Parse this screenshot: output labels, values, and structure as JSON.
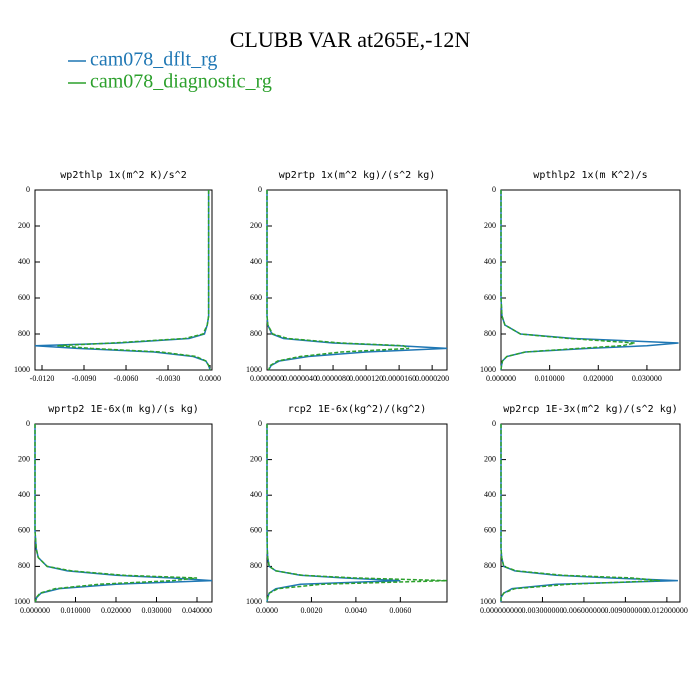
{
  "title": "CLUBB VAR at265E,-12N",
  "chart_data": [
    {
      "type": "line",
      "title": "wp2thlp  1x(m^2 K)/s^2",
      "y": [
        0,
        100,
        200,
        300,
        400,
        500,
        600,
        700,
        750,
        800,
        825,
        850,
        865,
        880,
        900,
        925,
        950,
        975,
        1000
      ],
      "series": [
        {
          "name": "cam078_dflt_rg",
          "color": "#1f77b4",
          "values": [
            -0.0001,
            -0.0001,
            -0.0001,
            -0.0001,
            -0.0001,
            -0.0001,
            -0.0001,
            -0.0001,
            -0.0002,
            -0.0004,
            -0.0015,
            -0.0065,
            -0.0125,
            -0.0095,
            -0.004,
            -0.0012,
            -0.0003,
            -0.0001,
            0
          ]
        },
        {
          "name": "cam078_diagnostic_rg",
          "color": "#2ca02c",
          "dashed": true,
          "values": [
            -0.0001,
            -0.0001,
            -0.0001,
            -0.0001,
            -0.0001,
            -0.0001,
            -0.0001,
            -0.0001,
            -0.0002,
            -0.0005,
            -0.0018,
            -0.007,
            -0.0109,
            -0.0085,
            -0.0035,
            -0.001,
            -0.0003,
            -0.0001,
            0
          ]
        }
      ],
      "xlim": [
        -0.0125,
        0.00014
      ],
      "xticks": [
        {
          "value": -0.012,
          "label": "-0.0120"
        },
        {
          "value": -0.009,
          "label": "-0.0090"
        },
        {
          "value": -0.006,
          "label": "-0.0060"
        },
        {
          "value": -0.003,
          "label": "-0.0030"
        },
        {
          "value": 0,
          "label": "0.0000"
        }
      ],
      "ylim": [
        0,
        1000
      ],
      "yticks": [
        0,
        200,
        400,
        600,
        800,
        1000
      ],
      "y_reversed": true
    },
    {
      "type": "line",
      "title": "wp2rtp  1x(m^2 kg)/(s^2 kg)",
      "y": [
        0,
        100,
        200,
        300,
        400,
        500,
        600,
        700,
        750,
        800,
        825,
        850,
        865,
        880,
        900,
        925,
        950,
        975,
        1000
      ],
      "series": [
        {
          "name": "cam078_dflt_rg",
          "color": "#1f77b4",
          "values": [
            0,
            0,
            0,
            0,
            0,
            0,
            0,
            0,
            1e-07,
            6e-07,
            2e-06,
            8e-06,
            1.6e-05,
            2.18e-05,
            1.2e-05,
            5e-06,
            1.5e-06,
            5e-07,
            2e-07
          ]
        },
        {
          "name": "cam078_diagnostic_rg",
          "color": "#2ca02c",
          "dashed": true,
          "values": [
            0,
            0,
            0,
            0,
            0,
            0,
            0,
            0,
            1e-07,
            7e-07,
            2.5e-06,
            9e-06,
            1.65e-05,
            1.72e-05,
            9e-06,
            4e-06,
            1.3e-06,
            4e-07,
            2e-07
          ]
        }
      ],
      "xlim": [
        0,
        2.18e-05
      ],
      "xticks": [
        {
          "value": 0,
          "label": "0.0000000"
        },
        {
          "value": 4e-06,
          "label": "0.0000040"
        },
        {
          "value": 8e-06,
          "label": "0.0000080"
        },
        {
          "value": 1.2e-05,
          "label": "0.0000120"
        },
        {
          "value": 1.6e-05,
          "label": "0.0000160"
        },
        {
          "value": 2e-05,
          "label": "0.0000200"
        }
      ],
      "ylim": [
        0,
        1000
      ],
      "yticks": [
        0,
        200,
        400,
        600,
        800,
        1000
      ],
      "y_reversed": true
    },
    {
      "type": "line",
      "title": "wpthlp2  1x(m K^2)/s",
      "y": [
        0,
        100,
        200,
        300,
        400,
        500,
        600,
        700,
        750,
        800,
        825,
        850,
        865,
        880,
        900,
        925,
        950,
        975,
        1000
      ],
      "series": [
        {
          "name": "cam078_dflt_rg",
          "color": "#1f77b4",
          "values": [
            0,
            0,
            0,
            0,
            0,
            0,
            0,
            0.0002,
            0.0008,
            0.004,
            0.015,
            0.0365,
            0.03,
            0.018,
            0.005,
            0.0012,
            0.0003,
            0.0001,
            0
          ]
        },
        {
          "name": "cam078_diagnostic_rg",
          "color": "#2ca02c",
          "dashed": true,
          "values": [
            0,
            0,
            0,
            0,
            0,
            0,
            0,
            0.0002,
            0.0008,
            0.004,
            0.014,
            0.0275,
            0.025,
            0.016,
            0.005,
            0.0012,
            0.0003,
            0.0001,
            0
          ]
        }
      ],
      "xlim": [
        0,
        0.0368
      ],
      "xticks": [
        {
          "value": 0,
          "label": "0.000000"
        },
        {
          "value": 0.01,
          "label": "0.010000"
        },
        {
          "value": 0.02,
          "label": "0.020000"
        },
        {
          "value": 0.03,
          "label": "0.030000"
        }
      ],
      "ylim": [
        0,
        1000
      ],
      "yticks": [
        0,
        200,
        400,
        600,
        800,
        1000
      ],
      "y_reversed": true
    },
    {
      "type": "line",
      "title": "wprtp2  1E-6x(m kg)/(s kg)",
      "y": [
        0,
        100,
        200,
        300,
        400,
        500,
        600,
        700,
        750,
        800,
        825,
        850,
        865,
        880,
        900,
        925,
        950,
        975,
        1000
      ],
      "series": [
        {
          "name": "cam078_dflt_rg",
          "color": "#1f77b4",
          "values": [
            0,
            0,
            0,
            0,
            0,
            0,
            0,
            0.0003,
            0.0008,
            0.003,
            0.008,
            0.02,
            0.034,
            0.0437,
            0.02,
            0.006,
            0.0015,
            0.0004,
            0.0001
          ]
        },
        {
          "name": "cam078_diagnostic_rg",
          "color": "#2ca02c",
          "dashed": true,
          "values": [
            0,
            0,
            0,
            0,
            0,
            0,
            0,
            0.0003,
            0.0008,
            0.003,
            0.009,
            0.022,
            0.04,
            0.034,
            0.016,
            0.005,
            0.0013,
            0.0003,
            0.0001
          ]
        }
      ],
      "xlim": [
        0,
        0.0437
      ],
      "xticks": [
        {
          "value": 0,
          "label": "0.000000"
        },
        {
          "value": 0.01,
          "label": "0.010000"
        },
        {
          "value": 0.02,
          "label": "0.020000"
        },
        {
          "value": 0.03,
          "label": "0.030000"
        },
        {
          "value": 0.04,
          "label": "0.040000"
        }
      ],
      "ylim": [
        0,
        1000
      ],
      "yticks": [
        0,
        200,
        400,
        600,
        800,
        1000
      ],
      "y_reversed": true
    },
    {
      "type": "line",
      "title": "rcp2  1E-6x(kg^2)/(kg^2)",
      "y": [
        0,
        100,
        200,
        300,
        400,
        500,
        600,
        700,
        750,
        800,
        825,
        850,
        865,
        880,
        900,
        925,
        950,
        975,
        1000
      ],
      "series": [
        {
          "name": "cam078_dflt_rg",
          "color": "#1f77b4",
          "values": [
            0,
            0,
            0,
            0,
            0,
            0,
            0,
            1e-05,
            3e-05,
            0.0001,
            0.0004,
            0.0015,
            0.0035,
            0.006,
            0.0015,
            0.0004,
            0.0001,
            3e-05,
            0
          ]
        },
        {
          "name": "cam078_diagnostic_rg",
          "color": "#2ca02c",
          "dashed": true,
          "values": [
            0,
            0,
            0,
            0,
            0,
            0,
            0,
            1e-05,
            3e-05,
            0.0001,
            0.0004,
            0.0016,
            0.004,
            0.0081,
            0.0025,
            0.0005,
            0.0001,
            3e-05,
            0
          ]
        }
      ],
      "xlim": [
        0,
        0.0081
      ],
      "xticks": [
        {
          "value": 0,
          "label": "0.0000"
        },
        {
          "value": 0.002,
          "label": "0.0020"
        },
        {
          "value": 0.004,
          "label": "0.0040"
        },
        {
          "value": 0.006,
          "label": "0.0060"
        }
      ],
      "ylim": [
        0,
        1000
      ],
      "yticks": [
        0,
        200,
        400,
        600,
        800,
        1000
      ],
      "y_reversed": true
    },
    {
      "type": "line",
      "title": "wp2rcp  1E-3x(m^2 kg)/(s^2 kg)",
      "y": [
        0,
        100,
        200,
        300,
        400,
        500,
        600,
        700,
        750,
        800,
        825,
        850,
        865,
        880,
        900,
        925,
        950,
        975,
        1000
      ],
      "series": [
        {
          "name": "cam078_dflt_rg",
          "color": "#1f77b4",
          "values": [
            0,
            0,
            0,
            0,
            0,
            0,
            0,
            0,
            5e-05,
            0.0002,
            0.001,
            0.004,
            0.008,
            0.0128,
            0.004,
            0.0008,
            0.0002,
            0,
            0
          ]
        },
        {
          "name": "cam078_diagnostic_rg",
          "color": "#2ca02c",
          "dashed": true,
          "values": [
            0,
            0,
            0,
            0,
            0,
            0,
            0,
            0,
            5e-05,
            0.0002,
            0.0011,
            0.0045,
            0.0095,
            0.0115,
            0.005,
            0.001,
            0.0002,
            0,
            0
          ]
        }
      ],
      "xlim": [
        0,
        0.01295
      ],
      "xticks": [
        {
          "value": 0,
          "label": "0.000000000"
        },
        {
          "value": 0.003,
          "label": "0.003000000"
        },
        {
          "value": 0.006,
          "label": "0.006000000"
        },
        {
          "value": 0.009,
          "label": "0.009000000"
        },
        {
          "value": 0.012,
          "label": "0.012000000"
        }
      ],
      "ylim": [
        0,
        1000
      ],
      "yticks": [
        0,
        200,
        400,
        600,
        800,
        1000
      ],
      "y_reversed": true
    }
  ]
}
